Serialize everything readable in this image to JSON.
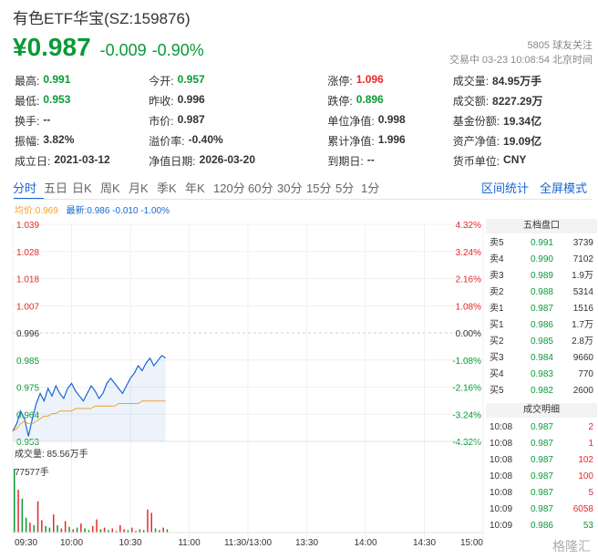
{
  "header": {
    "title": "有色ETF华宝(SZ:159876)",
    "price": "¥0.987",
    "change": "-0.009",
    "change_pct": "-0.90%",
    "followers": "5805 球友关注",
    "status_time": "交易中 03-23 10:08:54 北京时间"
  },
  "stats": [
    [
      {
        "k": "最高:",
        "v": "0.991",
        "c": "green"
      },
      {
        "k": "今开:",
        "v": "0.957",
        "c": "green"
      },
      {
        "k": "涨停:",
        "v": "1.096",
        "c": "red"
      },
      {
        "k": "成交量:",
        "v": "84.95万手",
        "c": ""
      }
    ],
    [
      {
        "k": "最低:",
        "v": "0.953",
        "c": "green"
      },
      {
        "k": "昨收:",
        "v": "0.996",
        "c": ""
      },
      {
        "k": "跌停:",
        "v": "0.896",
        "c": "green"
      },
      {
        "k": "成交额:",
        "v": "8227.29万",
        "c": ""
      }
    ],
    [
      {
        "k": "换手:",
        "v": "--",
        "c": ""
      },
      {
        "k": "市价:",
        "v": "0.987",
        "c": ""
      },
      {
        "k": "单位净值:",
        "v": "0.998",
        "c": ""
      },
      {
        "k": "基金份额:",
        "v": "19.34亿",
        "c": ""
      }
    ],
    [
      {
        "k": "振幅:",
        "v": "3.82%",
        "c": ""
      },
      {
        "k": "溢价率:",
        "v": "-0.40%",
        "c": ""
      },
      {
        "k": "累计净值:",
        "v": "1.996",
        "c": ""
      },
      {
        "k": "资产净值:",
        "v": "19.09亿",
        "c": ""
      }
    ],
    [
      {
        "k": "成立日:",
        "v": "2021-03-12",
        "c": ""
      },
      {
        "k": "净值日期:",
        "v": "2026-03-20",
        "c": ""
      },
      {
        "k": "到期日:",
        "v": "--",
        "c": ""
      },
      {
        "k": "货币单位:",
        "v": "CNY",
        "c": ""
      }
    ]
  ],
  "tabs": [
    "分时",
    "五日",
    "日K",
    "周K",
    "月K",
    "季K",
    "年K",
    "120分",
    "60分",
    "30分",
    "15分",
    "5分",
    "1分"
  ],
  "tabs_right": [
    "区间统计",
    "全屏模式"
  ],
  "legend": {
    "avg": "均价:0.969",
    "latest": "最新:0.986 -0.010 -1.00%"
  },
  "colors": {
    "up": "#e62a2a",
    "down": "#0b9a37",
    "accent": "#1a66d2",
    "price_line": "#1a66d2",
    "avg_line": "#f0a030"
  },
  "chart_data": {
    "type": "line",
    "y_ticks": [
      "1.039",
      "1.028",
      "1.018",
      "1.007",
      "0.996",
      "0.985",
      "0.975",
      "0.964",
      "0.953"
    ],
    "pct_ticks": [
      "4.32%",
      "3.24%",
      "2.16%",
      "1.08%",
      "0.00%",
      "-1.08%",
      "-2.16%",
      "-3.24%",
      "-4.32%"
    ],
    "ylim": [
      0.953,
      1.039
    ],
    "prev_close": 0.996,
    "x_ticks": [
      "09:30",
      "10:00",
      "10:30",
      "11:00",
      "11:30/13:00",
      "13:30",
      "14:00",
      "14:30",
      "15:00"
    ],
    "series": [
      {
        "values": [
          0.957,
          0.96,
          0.965,
          0.962,
          0.955,
          0.962,
          0.968,
          0.972,
          0.969,
          0.974,
          0.971,
          0.975,
          0.972,
          0.97,
          0.974,
          0.976,
          0.973,
          0.971,
          0.969,
          0.972,
          0.975,
          0.973,
          0.97,
          0.972,
          0.976,
          0.978,
          0.976,
          0.974,
          0.972,
          0.975,
          0.978,
          0.98,
          0.983,
          0.981,
          0.984,
          0.986,
          0.983,
          0.985,
          0.987,
          0.986
        ]
      },
      {
        "values": [
          0.957,
          0.958,
          0.96,
          0.961,
          0.96,
          0.96,
          0.961,
          0.962,
          0.963,
          0.963,
          0.964,
          0.964,
          0.965,
          0.965,
          0.965,
          0.965,
          0.966,
          0.966,
          0.966,
          0.966,
          0.966,
          0.967,
          0.967,
          0.967,
          0.967,
          0.967,
          0.967,
          0.968,
          0.968,
          0.968,
          0.968,
          0.968,
          0.968,
          0.969,
          0.969,
          0.969,
          0.969,
          0.969,
          0.969,
          0.969
        ]
      }
    ],
    "volume_label": "成交量: 85.56万手",
    "volume_max_label": "77577手",
    "volume": [
      77577,
      52000,
      41000,
      18000,
      12000,
      9000,
      38000,
      15000,
      8000,
      6000,
      22000,
      9000,
      5000,
      14000,
      7000,
      4000,
      6000,
      11000,
      5000,
      3000,
      8000,
      16000,
      4000,
      6000,
      3000,
      5000,
      2000,
      9000,
      4000,
      3000,
      6000,
      2000,
      4000,
      3000,
      28000,
      24000,
      5000,
      3000,
      6000,
      4000
    ],
    "volume_colors": [
      "g",
      "r",
      "g",
      "g",
      "r",
      "g",
      "r",
      "r",
      "g",
      "g",
      "r",
      "g",
      "r",
      "r",
      "g",
      "r",
      "g",
      "r",
      "g",
      "g",
      "r",
      "r",
      "g",
      "r",
      "g",
      "r",
      "g",
      "r",
      "r",
      "g",
      "r",
      "g",
      "r",
      "g",
      "r",
      "r",
      "g",
      "g",
      "r",
      "g"
    ]
  },
  "order_book": {
    "title": "五档盘口",
    "rows": [
      {
        "label": "卖5",
        "price": "0.991",
        "vol": "3739"
      },
      {
        "label": "卖4",
        "price": "0.990",
        "vol": "7102"
      },
      {
        "label": "卖3",
        "price": "0.989",
        "vol": "1.9万"
      },
      {
        "label": "卖2",
        "price": "0.988",
        "vol": "5314"
      },
      {
        "label": "卖1",
        "price": "0.987",
        "vol": "1516"
      },
      {
        "label": "买1",
        "price": "0.986",
        "vol": "1.7万"
      },
      {
        "label": "买2",
        "price": "0.985",
        "vol": "2.8万"
      },
      {
        "label": "买3",
        "price": "0.984",
        "vol": "9660"
      },
      {
        "label": "买4",
        "price": "0.983",
        "vol": "770"
      },
      {
        "label": "买5",
        "price": "0.982",
        "vol": "2600"
      }
    ]
  },
  "trades": {
    "title": "成交明细",
    "rows": [
      {
        "time": "10:08",
        "price": "0.987",
        "vol": "2",
        "c": "red"
      },
      {
        "time": "10:08",
        "price": "0.987",
        "vol": "1",
        "c": "red"
      },
      {
        "time": "10:08",
        "price": "0.987",
        "vol": "102",
        "c": "red"
      },
      {
        "time": "10:08",
        "price": "0.987",
        "vol": "100",
        "c": "red"
      },
      {
        "time": "10:08",
        "price": "0.987",
        "vol": "5",
        "c": "red"
      },
      {
        "time": "10:09",
        "price": "0.987",
        "vol": "6058",
        "c": "red"
      },
      {
        "time": "10:09",
        "price": "0.986",
        "vol": "53",
        "c": "green"
      }
    ]
  },
  "watermark": "格隆汇"
}
